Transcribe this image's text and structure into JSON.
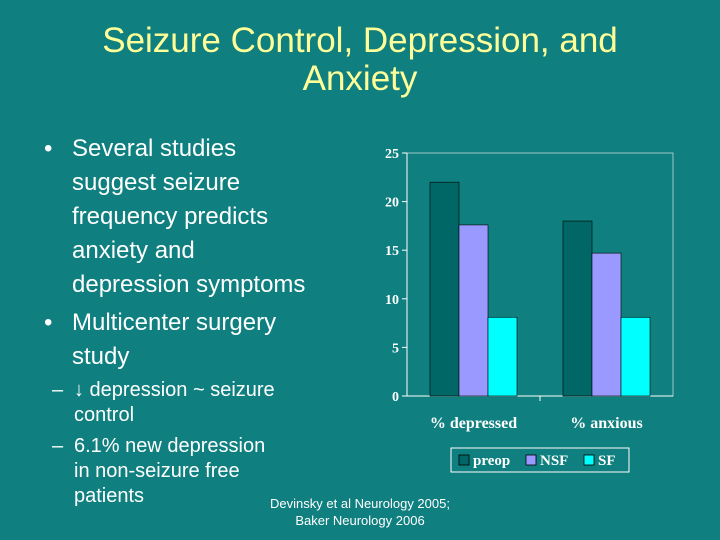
{
  "slide": {
    "title_lines": [
      "Seizure Control, Depression, and",
      "Anxiety"
    ],
    "bullets": [
      {
        "lines": [
          "Several studies",
          "suggest seizure",
          "frequency predicts",
          "anxiety and",
          "depression symptoms"
        ]
      },
      {
        "lines": [
          "Multicenter surgery",
          "study"
        ],
        "sub": [
          {
            "lines": [
              "↓ depression ~ seizure",
              "control"
            ]
          },
          {
            "lines": [
              "6.1% new depression",
              "in non-seizure free",
              "patients"
            ]
          }
        ]
      }
    ],
    "bullet_mark": "•",
    "sub_mark": "–",
    "citation_lines": [
      "Devinsky et al Neurology 2005;",
      "Baker Neurology 2006"
    ]
  },
  "chart_data": {
    "type": "bar",
    "categories": [
      "% depressed",
      "% anxious"
    ],
    "series": [
      {
        "name": "preop",
        "values": [
          22,
          18
        ],
        "color": "#006666"
      },
      {
        "name": "NSF",
        "values": [
          17.6,
          14.7
        ],
        "color": "#9999ff"
      },
      {
        "name": "SF",
        "values": [
          8.1,
          8.1
        ],
        "color": "#00ffff"
      }
    ],
    "ylim": [
      0,
      25
    ],
    "yticks": [
      0,
      5,
      10,
      15,
      20,
      25
    ],
    "grid": false,
    "legend": "bottom",
    "title": "",
    "xlabel": "",
    "ylabel": ""
  }
}
